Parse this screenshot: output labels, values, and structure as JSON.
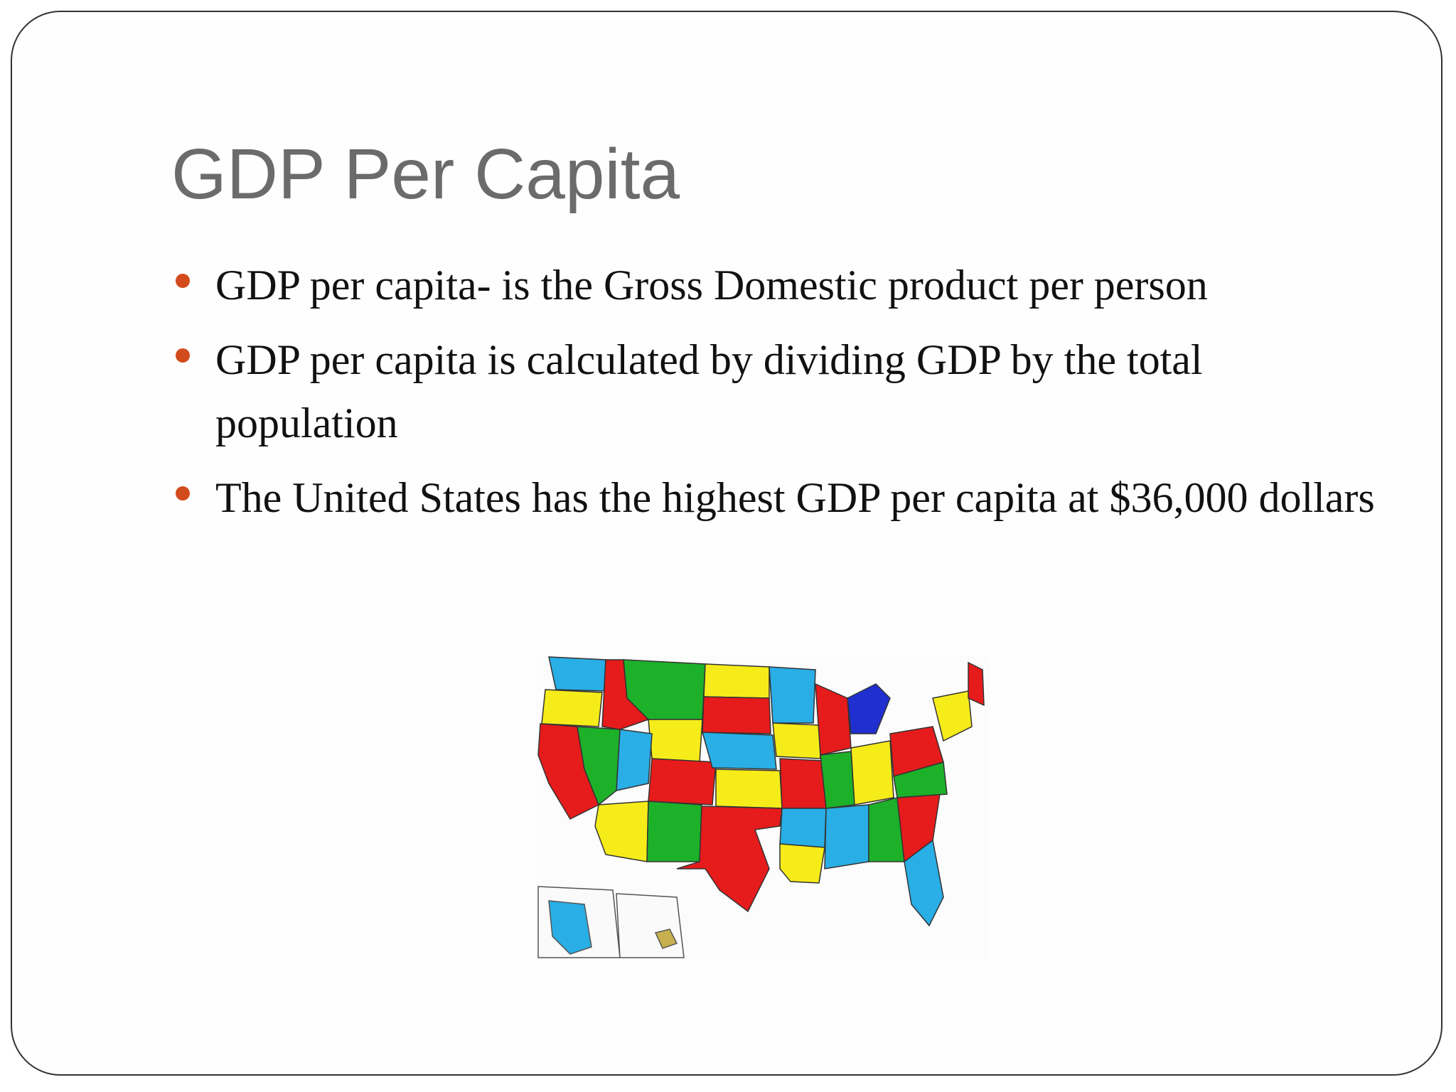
{
  "slide": {
    "title": "GDP Per Capita",
    "bullets": [
      "GDP per capita- is the Gross Domestic product per person",
      "GDP per capita is calculated by dividing GDP by the total population",
      "The United States has the highest GDP per capita at $36,000 dollars"
    ]
  }
}
